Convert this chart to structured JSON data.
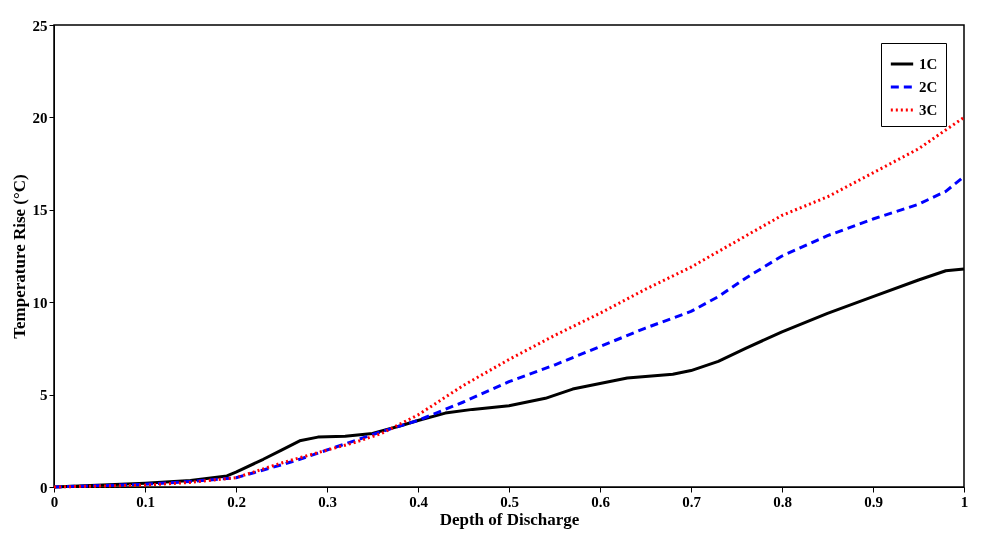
{
  "chart_data": {
    "type": "line",
    "xlabel": "Depth of Discharge",
    "ylabel": "Temperature Rise (°C)",
    "xlim": [
      0,
      1
    ],
    "ylim": [
      0,
      25
    ],
    "xticks": [
      0,
      0.1,
      0.2,
      0.3,
      0.4,
      0.5,
      0.6,
      0.7,
      0.8,
      0.9,
      1
    ],
    "yticks": [
      0,
      5,
      10,
      15,
      20,
      25
    ],
    "grid": false,
    "legend": "top right",
    "marker": "none",
    "series": [
      {
        "name": "1C",
        "color": "#000000",
        "line_style": "solid",
        "x": [
          0,
          0.1,
          0.15,
          0.19,
          0.2,
          0.23,
          0.25,
          0.27,
          0.29,
          0.32,
          0.35,
          0.38,
          0.4,
          0.43,
          0.46,
          0.5,
          0.54,
          0.57,
          0.6,
          0.63,
          0.68,
          0.7,
          0.73,
          0.76,
          0.8,
          0.85,
          0.9,
          0.95,
          0.98,
          1
        ],
        "values": [
          0,
          0.2,
          0.35,
          0.6,
          0.8,
          1.5,
          2.0,
          2.5,
          2.7,
          2.75,
          2.9,
          3.3,
          3.6,
          4.0,
          4.2,
          4.4,
          4.8,
          5.3,
          5.6,
          5.9,
          6.1,
          6.3,
          6.8,
          7.5,
          8.4,
          9.4,
          10.3,
          11.2,
          11.7,
          11.8
        ]
      },
      {
        "name": "2C",
        "color": "#0000ff",
        "line_style": "dashed",
        "x": [
          0,
          0.1,
          0.15,
          0.2,
          0.25,
          0.27,
          0.3,
          0.33,
          0.36,
          0.4,
          0.45,
          0.5,
          0.55,
          0.6,
          0.65,
          0.7,
          0.73,
          0.76,
          0.8,
          0.85,
          0.9,
          0.95,
          0.98,
          1
        ],
        "values": [
          0,
          0.15,
          0.3,
          0.5,
          1.2,
          1.5,
          2.0,
          2.5,
          3.0,
          3.6,
          4.6,
          5.7,
          6.6,
          7.6,
          8.6,
          9.5,
          10.3,
          11.3,
          12.5,
          13.6,
          14.5,
          15.3,
          16.0,
          16.8
        ]
      },
      {
        "name": "3C",
        "color": "#ff0000",
        "line_style": "dotted",
        "x": [
          0,
          0.1,
          0.15,
          0.2,
          0.25,
          0.3,
          0.33,
          0.36,
          0.4,
          0.45,
          0.5,
          0.55,
          0.6,
          0.65,
          0.7,
          0.75,
          0.8,
          0.85,
          0.9,
          0.95,
          1
        ],
        "values": [
          0,
          0.1,
          0.25,
          0.5,
          1.3,
          2.0,
          2.4,
          2.9,
          3.9,
          5.5,
          6.9,
          8.2,
          9.4,
          10.7,
          11.9,
          13.3,
          14.7,
          15.7,
          17.0,
          18.3,
          20.0
        ]
      }
    ]
  }
}
